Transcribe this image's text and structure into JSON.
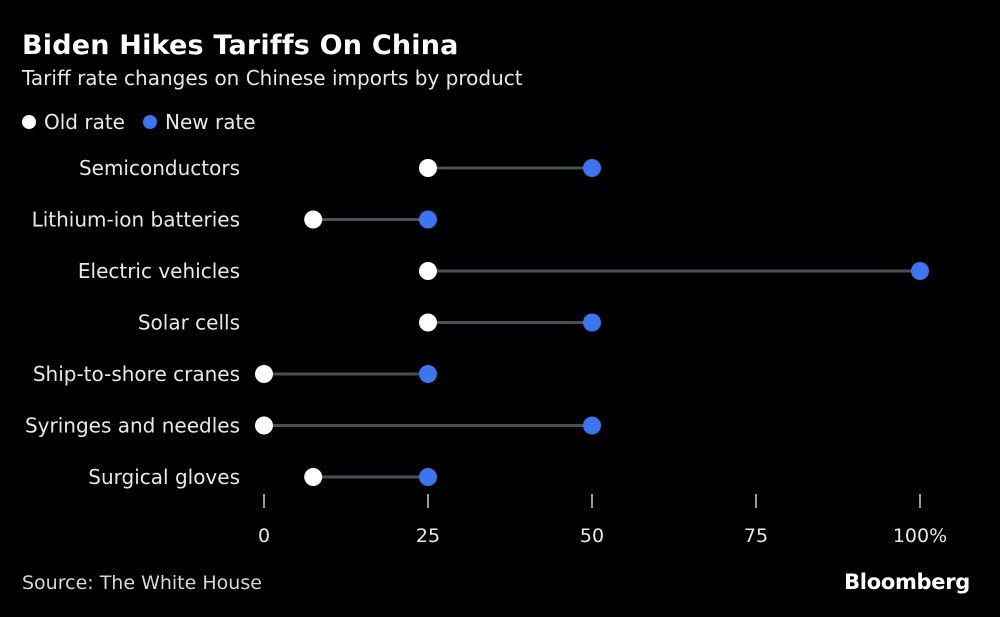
{
  "header": {
    "title": "Biden Hikes Tariffs On China",
    "subtitle": "Tariff rate changes on Chinese imports by product"
  },
  "legend": {
    "old_label": "Old rate",
    "new_label": "New rate"
  },
  "footer": {
    "source": "Source: The White House",
    "brand": "Bloomberg"
  },
  "colors": {
    "background": "#000000",
    "old_rate": "#ffffff",
    "new_rate": "#3d74f0",
    "connector": "#4a5155",
    "text": "#e8e8e8"
  },
  "chart_data": {
    "type": "dot-plot",
    "title": "Biden Hikes Tariffs On China",
    "subtitle": "Tariff rate changes on Chinese imports by product",
    "categories": [
      "Semiconductors",
      "Lithium-ion batteries",
      "Electric vehicles",
      "Solar cells",
      "Ship-to-shore cranes",
      "Syringes and needles",
      "Surgical gloves"
    ],
    "series": [
      {
        "name": "Old rate",
        "values": [
          25,
          7.5,
          25,
          25,
          0,
          0,
          7.5
        ]
      },
      {
        "name": "New rate",
        "values": [
          50,
          25,
          100,
          50,
          25,
          50,
          25
        ]
      }
    ],
    "xlim": [
      0,
      100
    ],
    "x_ticks": [
      0,
      25,
      50,
      75,
      100
    ],
    "x_tick_labels": [
      "0",
      "25",
      "50",
      "75",
      "100%"
    ],
    "legend_position": "top-left",
    "grid": false
  }
}
